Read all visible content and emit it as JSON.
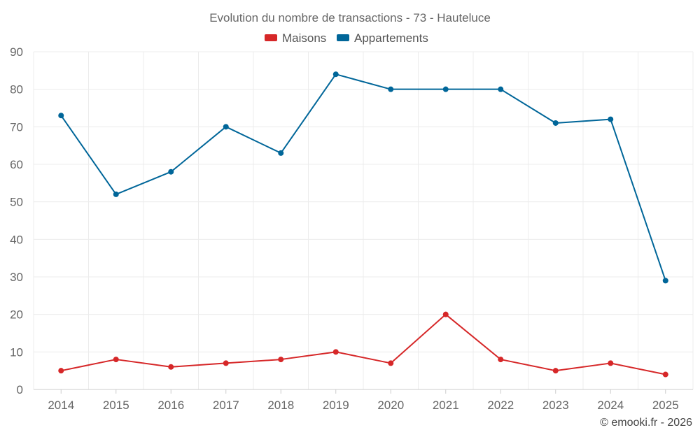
{
  "chart_data": {
    "type": "line",
    "title": "Evolution du nombre de transactions - 73 - Hauteluce",
    "categories": [
      "2014",
      "2015",
      "2016",
      "2017",
      "2018",
      "2019",
      "2020",
      "2021",
      "2022",
      "2023",
      "2024",
      "2025"
    ],
    "series": [
      {
        "name": "Maisons",
        "color": "#d62728",
        "values": [
          5,
          8,
          6,
          7,
          8,
          10,
          7,
          20,
          8,
          5,
          7,
          4
        ]
      },
      {
        "name": "Appartements",
        "color": "#006699",
        "values": [
          73,
          52,
          58,
          70,
          63,
          84,
          80,
          80,
          80,
          71,
          72,
          29
        ]
      }
    ],
    "ylim": [
      0,
      90
    ],
    "yticks": [
      0,
      10,
      20,
      30,
      40,
      50,
      60,
      70,
      80,
      90
    ],
    "grid": true,
    "legend_position": "top-center",
    "xlabel": "",
    "ylabel": ""
  },
  "credit": "© emooki.fr - 2026"
}
